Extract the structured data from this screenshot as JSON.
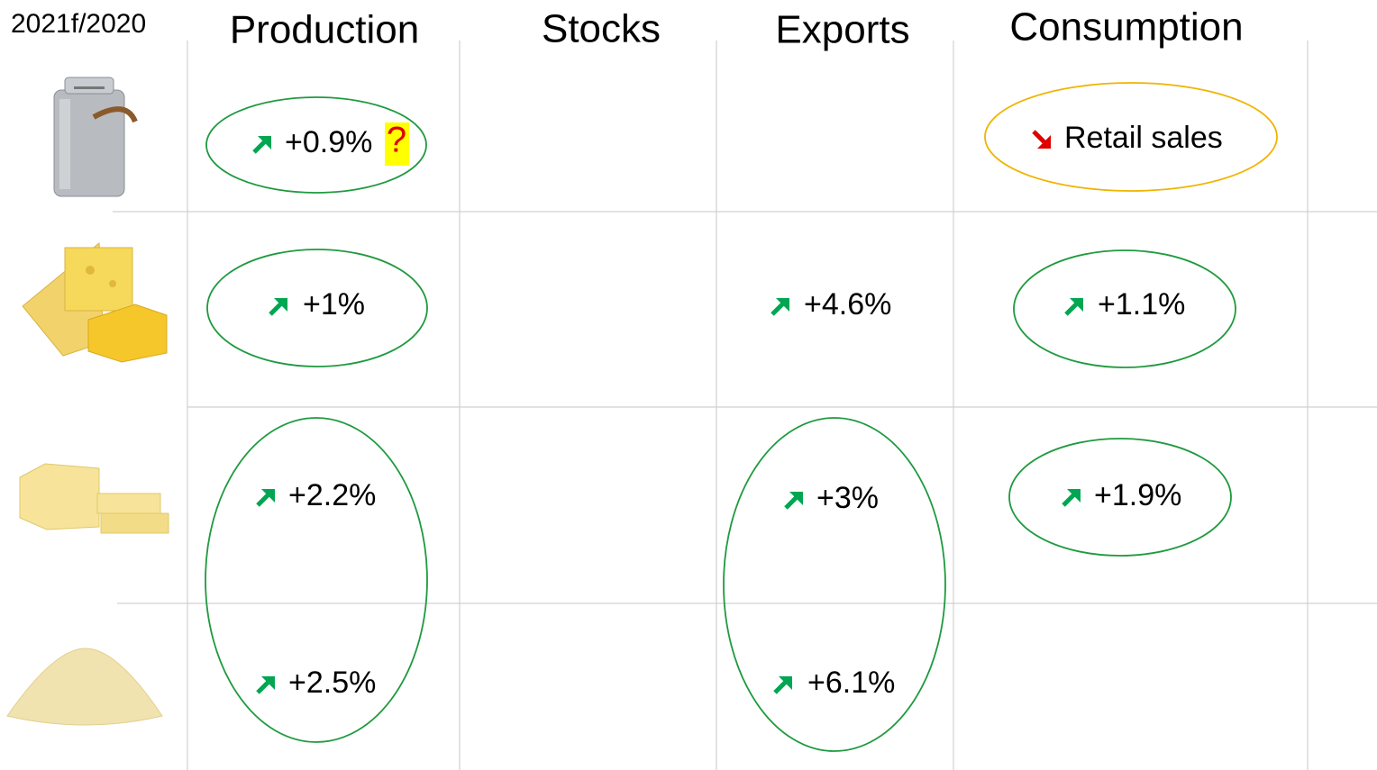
{
  "header": {
    "corner": "2021f/2020",
    "columns": [
      "Production",
      "Stocks",
      "Exports",
      "Consumption"
    ]
  },
  "table": {
    "rows": [
      [
        "+0.9%",
        null,
        null,
        "Retail sales"
      ],
      [
        "+1%",
        null,
        "+4.6%",
        "+1.1%"
      ],
      [
        "+2.2%",
        null,
        "+3%",
        "+1.9%"
      ],
      [
        "+2.5%",
        null,
        "+6.1%",
        null
      ]
    ]
  },
  "question_mark": "?"
}
